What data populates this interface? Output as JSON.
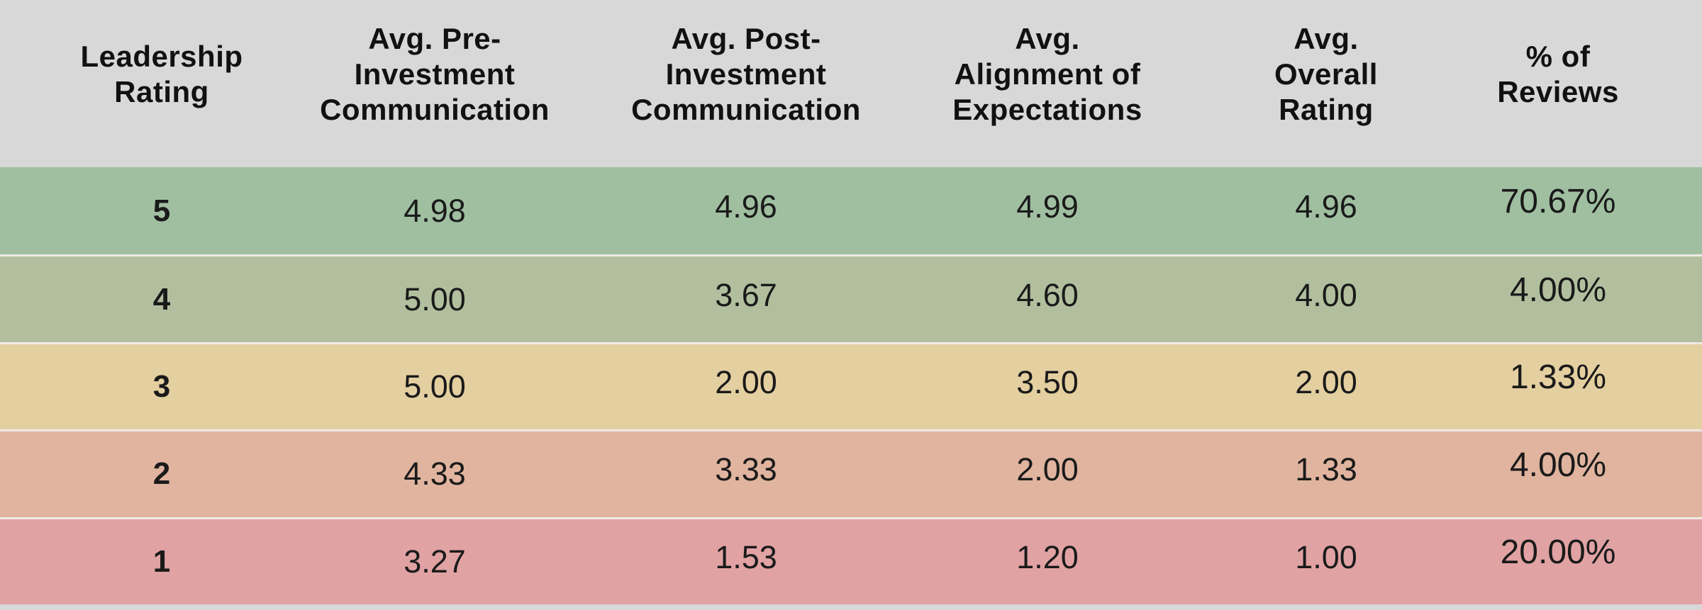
{
  "colors": {
    "page_bg": "#d8d8d8",
    "header_bg": "#d8d8d8",
    "separator": "#efe9e6",
    "text": "#1a1a1a",
    "row_green": "#a0bfa1",
    "row_sage": "#b2bf9e",
    "row_tan": "#e4cfa0",
    "row_salmon": "#e0b49e",
    "row_pink": "#e0a2a3"
  },
  "table": {
    "headers": [
      "Leadership\nRating",
      "Avg. Pre-\nInvestment\nCommunication",
      "Avg. Post-\nInvestment\nCommunication",
      "Avg.\nAlignment of\nExpectations",
      "Avg.\nOverall\nRating",
      "% of\nReviews"
    ],
    "rows": [
      {
        "color": "#a0bfa1",
        "values": [
          "5",
          "4.98",
          "4.96",
          "4.99",
          "4.96",
          "70.67%"
        ]
      },
      {
        "color": "#b2bf9e",
        "values": [
          "4",
          "5.00",
          "3.67",
          "4.60",
          "4.00",
          "4.00%"
        ]
      },
      {
        "color": "#e4cfa0",
        "values": [
          "3",
          "5.00",
          "2.00",
          "3.50",
          "2.00",
          "1.33%"
        ]
      },
      {
        "color": "#e0b49e",
        "values": [
          "2",
          "4.33",
          "3.33",
          "2.00",
          "1.33",
          "4.00%"
        ]
      },
      {
        "color": "#e0a2a3",
        "values": [
          "1",
          "3.27",
          "1.53",
          "1.20",
          "1.00",
          "20.00%"
        ]
      }
    ]
  },
  "chart_data": {
    "type": "table",
    "title": "Leadership Rating vs. average review metrics",
    "columns": [
      "Leadership Rating",
      "Avg. Pre-Investment Communication",
      "Avg. Post-Investment Communication",
      "Avg. Alignment of Expectations",
      "Avg. Overall Rating",
      "% of Reviews"
    ],
    "rows": [
      [
        5,
        4.98,
        4.96,
        4.99,
        4.96,
        "70.67%"
      ],
      [
        4,
        5.0,
        3.67,
        4.6,
        4.0,
        "4.00%"
      ],
      [
        3,
        5.0,
        2.0,
        3.5,
        2.0,
        "1.33%"
      ],
      [
        2,
        4.33,
        3.33,
        2.0,
        1.33,
        "4.00%"
      ],
      [
        1,
        3.27,
        1.53,
        1.2,
        1.0,
        "20.00%"
      ]
    ],
    "layout_hints": {
      "row_color_coding": "green (rating 5) to red (rating 1)",
      "header_background": "#d8d8d8",
      "gridlines": "thin light separators between data rows only"
    }
  }
}
